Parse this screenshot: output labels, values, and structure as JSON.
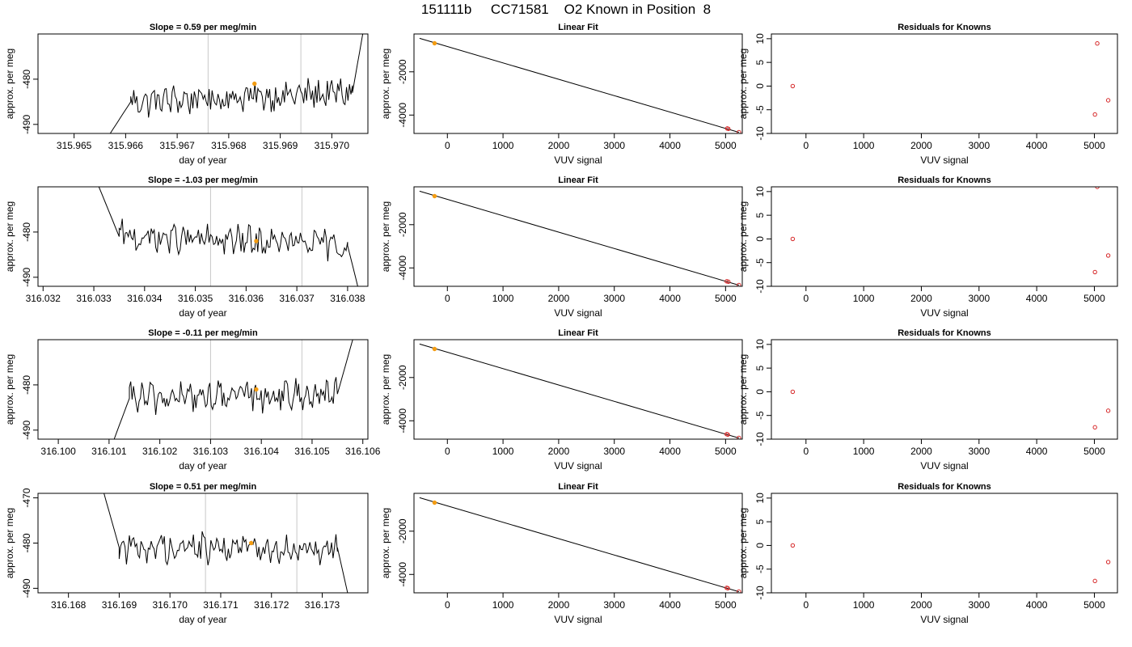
{
  "figure": {
    "title": "151111b     CC71581    O2 Known in Position  8",
    "colors": {
      "trace": "#000000",
      "marker": "#f39c12",
      "residual": "#d62728",
      "vline": "#c8c8c8",
      "frame": "#000000"
    }
  },
  "chart_data": [
    {
      "type": "line",
      "panel": "time",
      "row": 0,
      "title": "Slope =  0.59  per meg/min",
      "xlabel": "day of year",
      "ylabel": "approx. per meg",
      "xlim": [
        315.9643,
        315.9707
      ],
      "ylim": [
        -492,
        -470
      ],
      "xticks": [
        "315.965",
        "315.966",
        "315.967",
        "315.968",
        "315.969",
        "315.970"
      ],
      "yticks": [
        "-480",
        "-490"
      ],
      "vlines": [
        315.9676,
        315.9694
      ],
      "marker": {
        "x": 315.9685,
        "y": -481
      },
      "segments": [
        {
          "x0": 315.9657,
          "y0": -492,
          "x1": 315.9661,
          "y1": -485
        },
        {
          "x0": 315.9661,
          "y0": -485,
          "x1": 315.9704,
          "y1": -483
        },
        {
          "x0": 315.9704,
          "y0": -483,
          "x1": 315.9706,
          "y1": -470
        }
      ],
      "noise_amp": 2.8,
      "grid": false
    },
    {
      "type": "scatter",
      "panel": "fit",
      "row": 0,
      "title": "Linear Fit",
      "xlabel": "VUV signal",
      "ylabel": "approx. per meg",
      "xlim": [
        -600,
        5300
      ],
      "ylim": [
        -4850,
        -250
      ],
      "xticks": [
        0,
        1000,
        2000,
        3000,
        4000,
        5000
      ],
      "yticks": [
        -2000,
        -4000
      ],
      "line": {
        "x0": -500,
        "y0": -450,
        "x1": 5240,
        "y1": -4800
      },
      "points": [
        {
          "x": -230,
          "y": -680,
          "known": true
        },
        {
          "x": 5030,
          "y": -4620
        },
        {
          "x": 5050,
          "y": -4640
        },
        {
          "x": 5240,
          "y": -4790
        }
      ]
    },
    {
      "type": "scatter",
      "panel": "residuals",
      "row": 0,
      "title": "Residuals for Knowns",
      "xlabel": "VUV signal",
      "ylabel": "approx. per meg",
      "xlim": [
        -600,
        5400
      ],
      "ylim": [
        -10,
        11
      ],
      "xticks": [
        0,
        1000,
        2000,
        3000,
        4000,
        5000
      ],
      "yticks": [
        10,
        5,
        0,
        -5,
        -10
      ],
      "points": [
        {
          "x": -230,
          "y": 0
        },
        {
          "x": 5050,
          "y": 9
        },
        {
          "x": 5010,
          "y": -6
        },
        {
          "x": 5240,
          "y": -3
        }
      ]
    },
    {
      "type": "line",
      "panel": "time",
      "row": 1,
      "title": "Slope =  -1.03  per meg/min",
      "xlabel": "day of year",
      "ylabel": "approx. per meg",
      "xlim": [
        316.0319,
        316.0384
      ],
      "ylim": [
        -492,
        -470
      ],
      "xticks": [
        "316.032",
        "316.033",
        "316.034",
        "316.035",
        "316.036",
        "316.037",
        "316.038"
      ],
      "yticks": [
        "-480",
        "-490"
      ],
      "vlines": [
        316.0353,
        316.0371
      ],
      "marker": {
        "x": 316.0362,
        "y": -482
      },
      "segments": [
        {
          "x0": 316.0331,
          "y0": -470,
          "x1": 316.0335,
          "y1": -481
        },
        {
          "x0": 316.0335,
          "y0": -481,
          "x1": 316.038,
          "y1": -483
        },
        {
          "x0": 316.038,
          "y0": -483,
          "x1": 316.0382,
          "y1": -492
        }
      ],
      "noise_amp": 2.8,
      "grid": false
    },
    {
      "type": "scatter",
      "panel": "fit",
      "row": 1,
      "title": "Linear Fit",
      "xlabel": "VUV signal",
      "ylabel": "approx. per meg",
      "xlim": [
        -600,
        5300
      ],
      "ylim": [
        -4850,
        -250
      ],
      "xticks": [
        0,
        1000,
        2000,
        3000,
        4000,
        5000
      ],
      "yticks": [
        -2000,
        -4000
      ],
      "line": {
        "x0": -500,
        "y0": -450,
        "x1": 5240,
        "y1": -4800
      },
      "points": [
        {
          "x": -230,
          "y": -680,
          "known": true
        },
        {
          "x": 5020,
          "y": -4620
        },
        {
          "x": 5050,
          "y": -4640
        },
        {
          "x": 5240,
          "y": -4790
        }
      ]
    },
    {
      "type": "scatter",
      "panel": "residuals",
      "row": 1,
      "title": "Residuals for Knowns",
      "xlabel": "VUV signal",
      "ylabel": "approx. per meg",
      "xlim": [
        -600,
        5400
      ],
      "ylim": [
        -10,
        11
      ],
      "xticks": [
        0,
        1000,
        2000,
        3000,
        4000,
        5000
      ],
      "yticks": [
        10,
        5,
        0,
        -5,
        -10
      ],
      "points": [
        {
          "x": -230,
          "y": 0
        },
        {
          "x": 5050,
          "y": 11
        },
        {
          "x": 5010,
          "y": -7
        },
        {
          "x": 5240,
          "y": -3.5
        }
      ]
    },
    {
      "type": "line",
      "panel": "time",
      "row": 2,
      "title": "Slope =  -0.11  per meg/min",
      "xlabel": "day of year",
      "ylabel": "approx. per meg",
      "xlim": [
        316.0996,
        316.1061
      ],
      "ylim": [
        -492,
        -470
      ],
      "xticks": [
        "316.100",
        "316.101",
        "316.102",
        "316.103",
        "316.104",
        "316.105",
        "316.106"
      ],
      "yticks": [
        "-480",
        "-490"
      ],
      "vlines": [
        316.103,
        316.1048
      ],
      "marker": {
        "x": 316.1039,
        "y": -481
      },
      "segments": [
        {
          "x0": 316.1011,
          "y0": -492,
          "x1": 316.1014,
          "y1": -483
        },
        {
          "x0": 316.1014,
          "y0": -483,
          "x1": 316.1055,
          "y1": -482
        },
        {
          "x0": 316.1055,
          "y0": -482,
          "x1": 316.1058,
          "y1": -470
        }
      ],
      "noise_amp": 2.8,
      "grid": false
    },
    {
      "type": "scatter",
      "panel": "fit",
      "row": 2,
      "title": "Linear Fit",
      "xlabel": "VUV signal",
      "ylabel": "approx. per meg",
      "xlim": [
        -600,
        5300
      ],
      "ylim": [
        -4850,
        -250
      ],
      "xticks": [
        0,
        1000,
        2000,
        3000,
        4000,
        5000
      ],
      "yticks": [
        -2000,
        -4000
      ],
      "line": {
        "x0": -500,
        "y0": -450,
        "x1": 5240,
        "y1": -4800
      },
      "points": [
        {
          "x": -230,
          "y": -680,
          "known": true
        },
        {
          "x": 5020,
          "y": -4620
        },
        {
          "x": 5040,
          "y": -4640
        },
        {
          "x": 5240,
          "y": -4790
        }
      ]
    },
    {
      "type": "scatter",
      "panel": "residuals",
      "row": 2,
      "title": "Residuals for Knowns",
      "xlabel": "VUV signal",
      "ylabel": "approx. per meg",
      "xlim": [
        -600,
        5400
      ],
      "ylim": [
        -10,
        11
      ],
      "xticks": [
        0,
        1000,
        2000,
        3000,
        4000,
        5000
      ],
      "yticks": [
        10,
        5,
        0,
        -5,
        -10
      ],
      "points": [
        {
          "x": -230,
          "y": 0
        },
        {
          "x": 5010,
          "y": -7.5
        },
        {
          "x": 5240,
          "y": -4
        }
      ]
    },
    {
      "type": "line",
      "panel": "time",
      "row": 3,
      "title": "Slope =  0.51  per meg/min",
      "xlabel": "day of year",
      "ylabel": "approx. per meg",
      "xlim": [
        316.1674,
        316.1739
      ],
      "ylim": [
        -491,
        -469
      ],
      "xticks": [
        "316.168",
        "316.169",
        "316.170",
        "316.171",
        "316.172",
        "316.173"
      ],
      "yticks": [
        "-470",
        "-480",
        "-490"
      ],
      "vlines": [
        316.1707,
        316.1725
      ],
      "marker": {
        "x": 316.1716,
        "y": -480
      },
      "segments": [
        {
          "x0": 316.1687,
          "y0": -469,
          "x1": 316.169,
          "y1": -481
        },
        {
          "x0": 316.169,
          "y0": -481,
          "x1": 316.1733,
          "y1": -481
        },
        {
          "x0": 316.1733,
          "y0": -481,
          "x1": 316.1735,
          "y1": -491
        }
      ],
      "noise_amp": 2.8,
      "grid": false
    },
    {
      "type": "scatter",
      "panel": "fit",
      "row": 3,
      "title": "Linear Fit",
      "xlabel": "VUV signal",
      "ylabel": "approx. per meg",
      "xlim": [
        -600,
        5300
      ],
      "ylim": [
        -4850,
        -250
      ],
      "xticks": [
        0,
        1000,
        2000,
        3000,
        4000,
        5000
      ],
      "yticks": [
        -2000,
        -4000
      ],
      "line": {
        "x0": -500,
        "y0": -450,
        "x1": 5240,
        "y1": -4800
      },
      "points": [
        {
          "x": -230,
          "y": -680,
          "known": true
        },
        {
          "x": 5020,
          "y": -4620
        },
        {
          "x": 5040,
          "y": -4640
        },
        {
          "x": 5240,
          "y": -4790
        }
      ]
    },
    {
      "type": "scatter",
      "panel": "residuals",
      "row": 3,
      "title": "Residuals for Knowns",
      "xlabel": "VUV signal",
      "ylabel": "approx. per meg",
      "xlim": [
        -600,
        5400
      ],
      "ylim": [
        -10,
        11
      ],
      "xticks": [
        0,
        1000,
        2000,
        3000,
        4000,
        5000
      ],
      "yticks": [
        10,
        5,
        0,
        -5,
        -10
      ],
      "points": [
        {
          "x": -230,
          "y": 0
        },
        {
          "x": 5010,
          "y": -7.5
        },
        {
          "x": 5240,
          "y": -3.5
        }
      ]
    }
  ]
}
